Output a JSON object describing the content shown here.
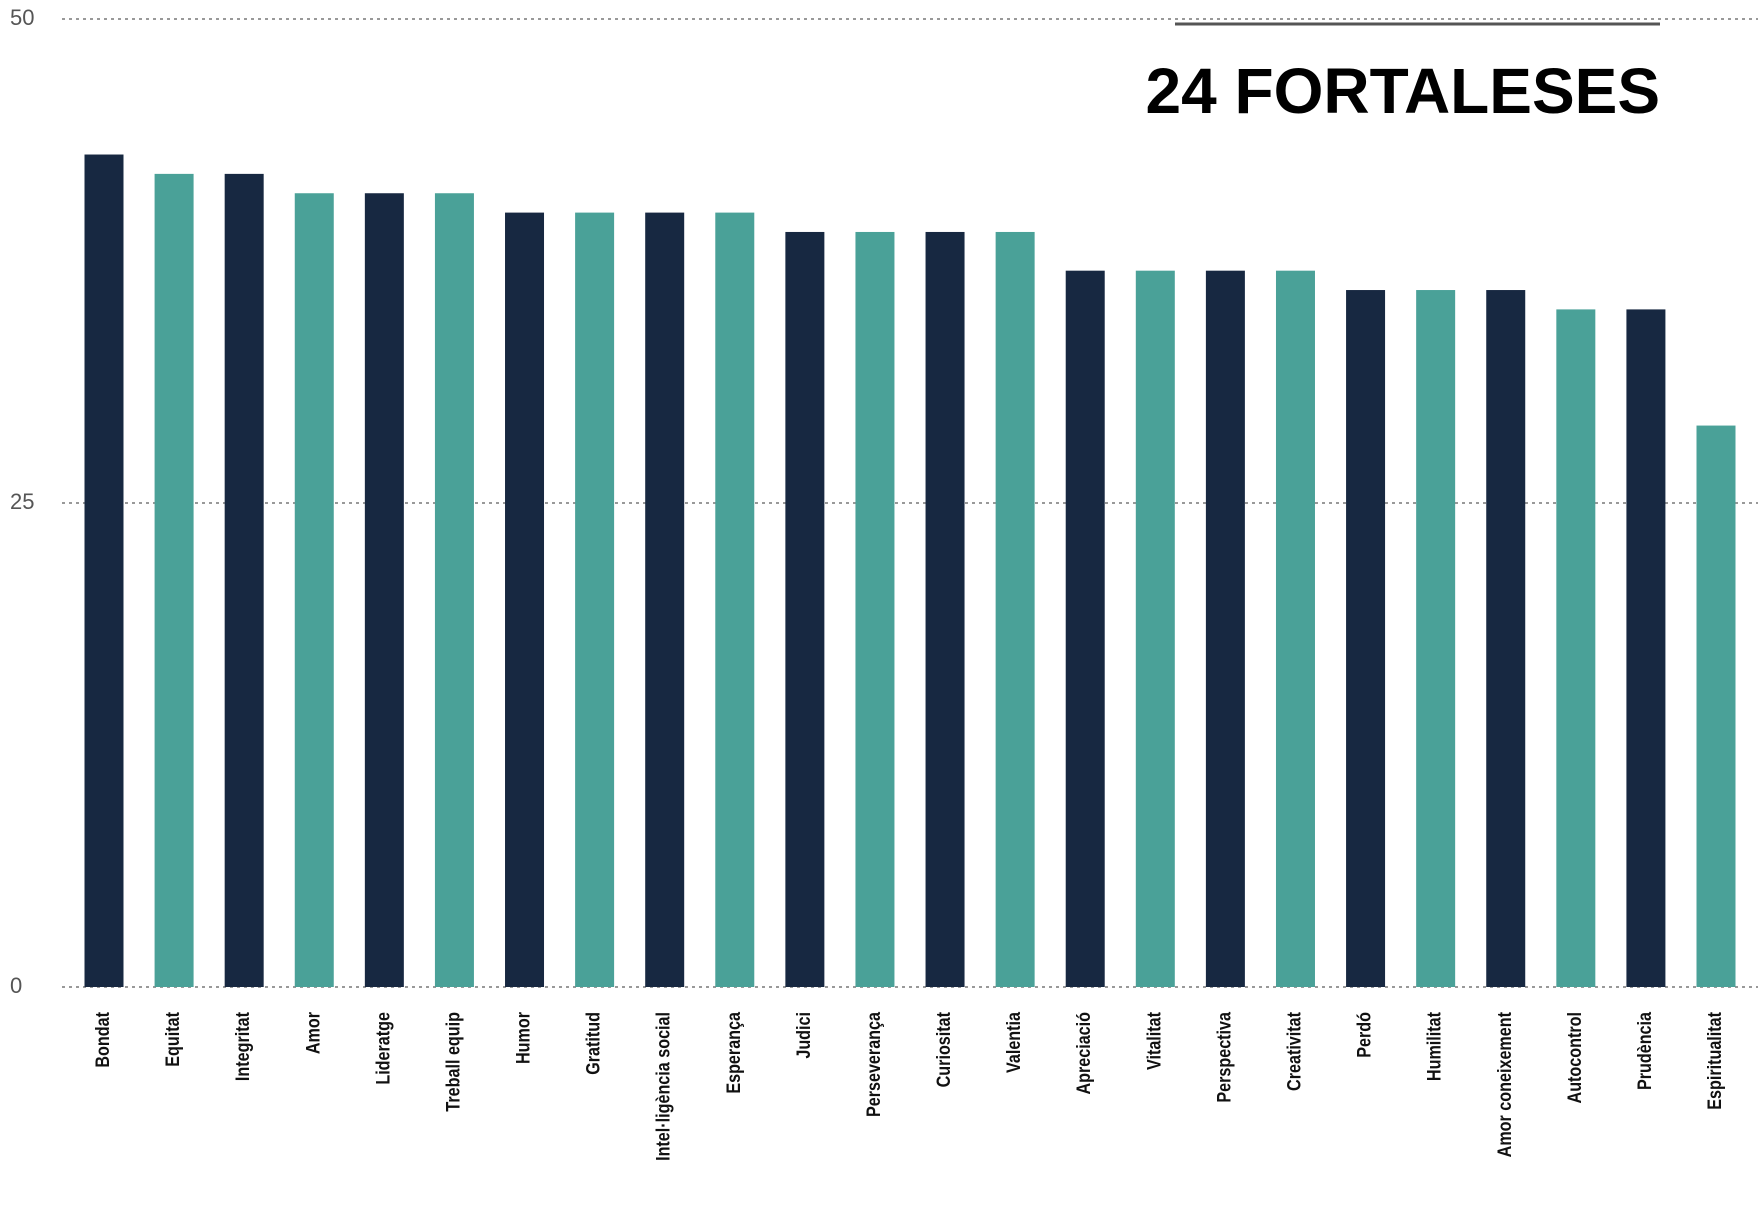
{
  "chart_data": {
    "type": "bar",
    "title": "24 FORTALESES",
    "categories": [
      "Bondat",
      "Equitat",
      "Integritat",
      "Amor",
      "Lideratge",
      "Treball equip",
      "Humor",
      "Gratitud",
      "Intel·ligència social",
      "Esperança",
      "Judici",
      "Perseverança",
      "Curiositat",
      "Valentia",
      "Apreciació",
      "Vitalitat",
      "Perspectiva",
      "Creativitat",
      "Perdó",
      "Humilitat",
      "Amor coneixement",
      "Autocontrol",
      "Prudència",
      "Espiritualitat"
    ],
    "values": [
      43,
      42,
      42,
      41,
      41,
      41,
      40,
      40,
      40,
      40,
      39,
      39,
      39,
      39,
      37,
      37,
      37,
      37,
      36,
      36,
      36,
      35,
      35,
      29
    ],
    "colors": [
      "#172841",
      "#4aa198",
      "#172841",
      "#4aa198",
      "#172841",
      "#4aa198",
      "#172841",
      "#4aa198",
      "#172841",
      "#4aa198",
      "#172841",
      "#4aa198",
      "#172841",
      "#4aa198",
      "#172841",
      "#4aa198",
      "#172841",
      "#4aa198",
      "#172841",
      "#4aa198",
      "#172841",
      "#4aa198",
      "#172841",
      "#4aa198"
    ],
    "ylim": [
      0,
      50
    ],
    "yticks": [
      0,
      25,
      50
    ],
    "grid": true
  }
}
